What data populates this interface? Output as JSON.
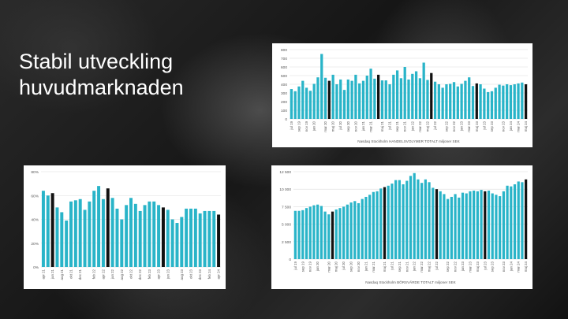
{
  "slide": {
    "title": "Stabil utveckling huvudmarknaden"
  },
  "colors": {
    "bar": "#29b4c8",
    "highlight": "#111111",
    "grid": "#dddddd",
    "text": "#555555"
  },
  "chart_data": [
    {
      "id": "handelsvolymer",
      "type": "bar",
      "xlabel": "Nasdaq Stockholm HANDELSVOLYMER TOTALT miljoner SEK",
      "ylabel": "",
      "ylim": [
        0,
        800
      ],
      "yticks": [
        0,
        100,
        200,
        300,
        400,
        500,
        600,
        700,
        800
      ],
      "grid": true,
      "values": [
        345,
        320,
        375,
        440,
        360,
        325,
        405,
        480,
        750,
        475,
        440,
        510,
        400,
        455,
        335,
        455,
        440,
        510,
        410,
        440,
        500,
        580,
        465,
        510,
        445,
        445,
        400,
        510,
        560,
        470,
        600,
        455,
        520,
        550,
        470,
        650,
        450,
        530,
        430,
        400,
        360,
        400,
        405,
        425,
        375,
        405,
        440,
        480,
        380,
        410,
        400,
        350,
        310,
        320,
        360,
        395,
        385,
        400,
        390,
        400,
        410,
        420,
        400
      ],
      "highlight": [
        10,
        23,
        37,
        49,
        62
      ],
      "xtick_labels": [
        "jul 19",
        "sep 19",
        "nov 19",
        "jan 20",
        "mar 20",
        "maj 20",
        "jul 20",
        "sep 20",
        "nov 20",
        "jan 21",
        "mar 21",
        "maj 21",
        "jul 21",
        "sep 21",
        "nov 21",
        "jan 22",
        "mar 22",
        "maj 22",
        "jul 22",
        "sep 22",
        "nov 22",
        "jan 23",
        "mar 23",
        "maj 23",
        "jul 23",
        "sep 23",
        "nov 23",
        "jan 24",
        "mar 24",
        "maj 24"
      ]
    },
    {
      "id": "andel",
      "type": "bar",
      "xlabel": "",
      "ylabel": "",
      "ylim": [
        0,
        80
      ],
      "yticks": [
        0,
        20,
        40,
        60,
        80
      ],
      "ytick_suffix": "%",
      "grid": true,
      "values": [
        64,
        60,
        62,
        50,
        46,
        39,
        55,
        56,
        57,
        48,
        55,
        64,
        68,
        57,
        66,
        58,
        49,
        40,
        52,
        58,
        53,
        47,
        52,
        55,
        55,
        52,
        50,
        48,
        40,
        37,
        42,
        49,
        49,
        49,
        45,
        47,
        47,
        47,
        44
      ],
      "highlight": [
        2,
        14,
        26,
        38
      ],
      "xtick_labels": [
        "apr 21",
        "jun 21",
        "aug 21",
        "okt 21",
        "dec 21",
        "feb 22",
        "apr 22",
        "jun 22",
        "aug 22",
        "okt 22",
        "dec 22",
        "feb 23",
        "apr 23",
        "jun 23",
        "aug 23",
        "okt 23",
        "dec 23",
        "feb 24",
        "apr 24"
      ]
    },
    {
      "id": "borsvarde",
      "type": "bar",
      "xlabel": "Nasdaq Stockholm BÖRSVÄRDE TOTALT miljoner SEK",
      "ylabel": "",
      "ylim": [
        0,
        12500
      ],
      "yticks": [
        0,
        2500,
        5000,
        7500,
        10000,
        12500
      ],
      "ytick_labels": [
        "0",
        "2 500",
        "5 000",
        "7 500",
        "10 000",
        "12 500"
      ],
      "grid": true,
      "values": [
        6900,
        6900,
        7000,
        7300,
        7500,
        7700,
        7800,
        7600,
        6800,
        6400,
        6800,
        7100,
        7300,
        7500,
        7800,
        8100,
        8300,
        8000,
        8600,
        8900,
        9200,
        9600,
        9700,
        10100,
        10300,
        10500,
        10800,
        11300,
        11300,
        10700,
        11200,
        11900,
        12300,
        11400,
        10900,
        11400,
        11000,
        10200,
        10000,
        9700,
        9300,
        8600,
        8900,
        9300,
        8800,
        9500,
        9400,
        9700,
        9800,
        9700,
        9900,
        9700,
        9800,
        9400,
        9200,
        9000,
        9700,
        10500,
        10400,
        10700,
        11100,
        11000,
        11400
      ],
      "highlight": [
        10,
        24,
        38,
        51,
        62
      ],
      "xtick_labels": [
        "jul 19",
        "sep 19",
        "nov 19",
        "jan 20",
        "mar 20",
        "maj 20",
        "jul 20",
        "sep 20",
        "nov 20",
        "jan 21",
        "mar 21",
        "maj 21",
        "jul 21",
        "sep 21",
        "nov 21",
        "jan 22",
        "mar 22",
        "maj 22",
        "jul 22",
        "sep 22",
        "nov 22",
        "jan 23",
        "mar 23",
        "maj 23",
        "jul 23",
        "sep 23",
        "nov 23",
        "jan 24",
        "mar 24",
        "maj 24"
      ]
    }
  ]
}
